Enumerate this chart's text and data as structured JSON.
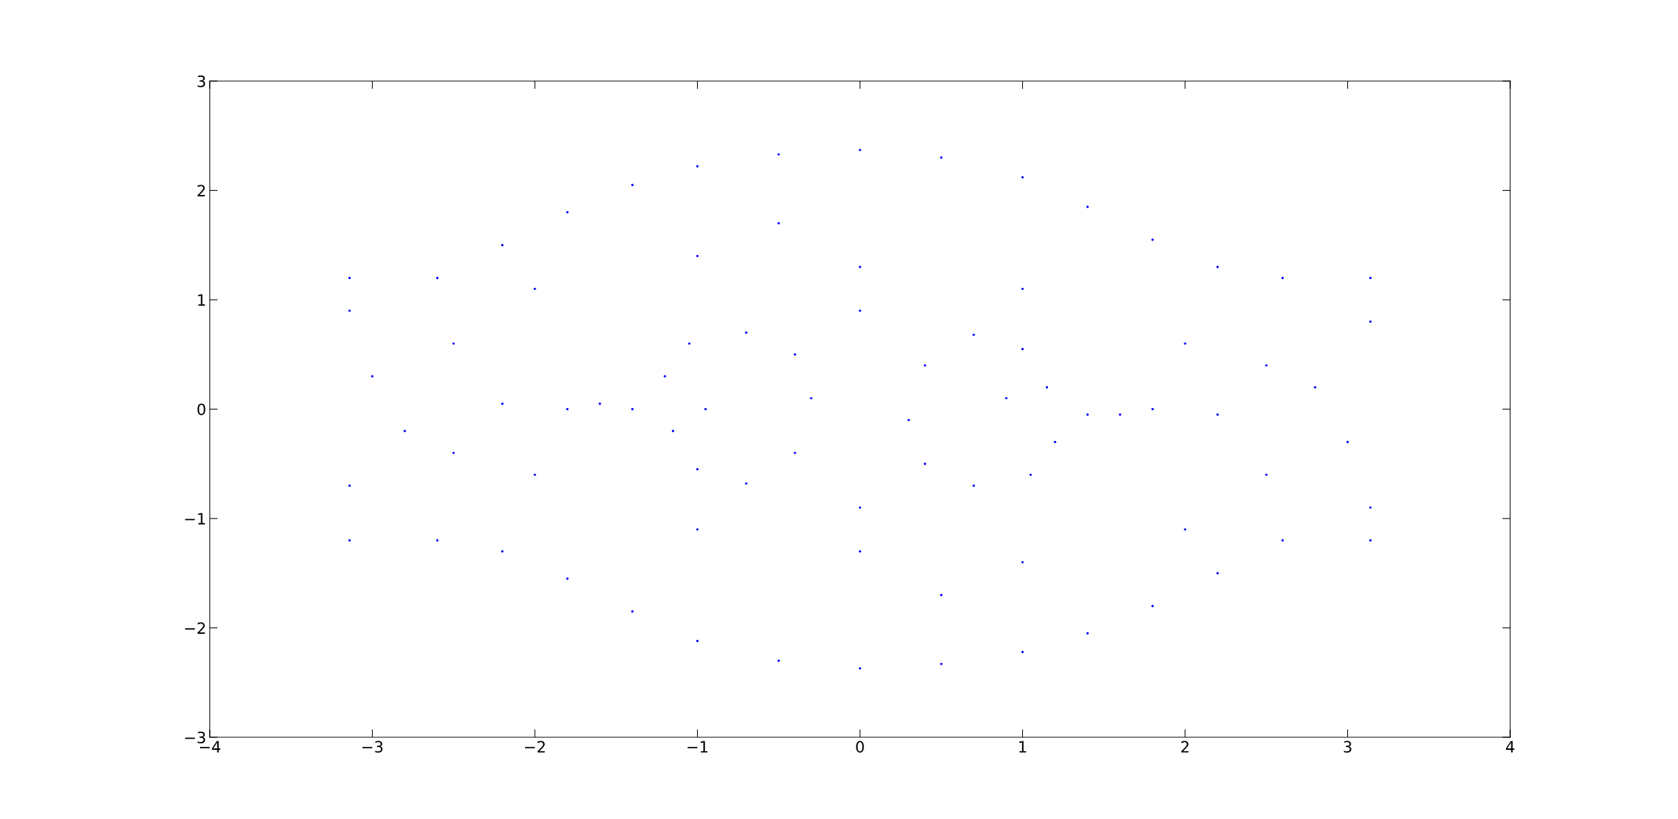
{
  "chart_data": {
    "type": "scatter",
    "color": "#0000ff",
    "marker": "circle",
    "x": [
      -3.14,
      -2.6,
      -2.2,
      -1.8,
      -1.4,
      -1.0,
      -0.5,
      0,
      0.5,
      1.0,
      1.4,
      1.8,
      2.2,
      2.6,
      3.14,
      3.14,
      2.6,
      2.2,
      1.8,
      1.4,
      1.0,
      0.5,
      0,
      -0.5,
      -1.0,
      -1.4,
      -1.8,
      -2.2,
      -2.6,
      -3.14,
      -1.2,
      -1.05,
      -0.7,
      -0.4,
      -0.3,
      -0.4,
      -0.7,
      -1.0,
      -1.15,
      -0.95,
      1.2,
      1.05,
      0.7,
      0.4,
      0.3,
      0.4,
      0.7,
      1.0,
      1.15,
      0.9,
      -3.14,
      -2.5,
      -1.8,
      -2.5,
      -3.14,
      -3.0,
      -2.8,
      -2.2,
      -1.6,
      -1.4,
      3.14,
      2.5,
      1.8,
      2.5,
      3.14,
      3.0,
      2.8,
      2.2,
      1.6,
      1.4,
      -2,
      -1,
      0,
      1,
      2,
      2,
      1,
      0,
      -1,
      -2,
      0,
      0,
      -0.5,
      0.5
    ],
    "values": [
      1.2,
      1.2,
      1.5,
      1.8,
      2.05,
      2.22,
      2.33,
      2.37,
      2.3,
      2.12,
      1.85,
      1.55,
      1.3,
      1.2,
      1.2,
      -1.2,
      -1.2,
      -1.5,
      -1.8,
      -2.05,
      -2.22,
      -2.33,
      -2.37,
      -2.3,
      -2.12,
      -1.85,
      -1.55,
      -1.3,
      -1.2,
      -1.2,
      0.3,
      0.6,
      0.7,
      0.5,
      0.1,
      -0.4,
      -0.68,
      -0.55,
      -0.2,
      0,
      -0.3,
      -0.6,
      -0.7,
      -0.5,
      -0.1,
      0.4,
      0.68,
      0.55,
      0.2,
      0.1,
      0.9,
      0.6,
      0.0,
      -0.4,
      -0.7,
      0.3,
      -0.2,
      0.05,
      0.05,
      0.0,
      -0.9,
      -0.6,
      0.0,
      0.4,
      0.8,
      -0.3,
      0.2,
      -0.05,
      -0.05,
      -0.05,
      1.1,
      1.4,
      1.3,
      1.1,
      0.6,
      -1.1,
      -1.4,
      -1.3,
      -1.1,
      -0.6,
      0.9,
      -0.9,
      1.7,
      -1.7
    ],
    "xlim": [
      -4,
      4
    ],
    "ylim": [
      -3,
      3
    ],
    "xticks": [
      -4,
      -3,
      -2,
      -1,
      0,
      1,
      2,
      3,
      4
    ],
    "yticks": [
      -3,
      -2,
      -1,
      0,
      1,
      2,
      3
    ],
    "grid": false,
    "legend": false
  }
}
